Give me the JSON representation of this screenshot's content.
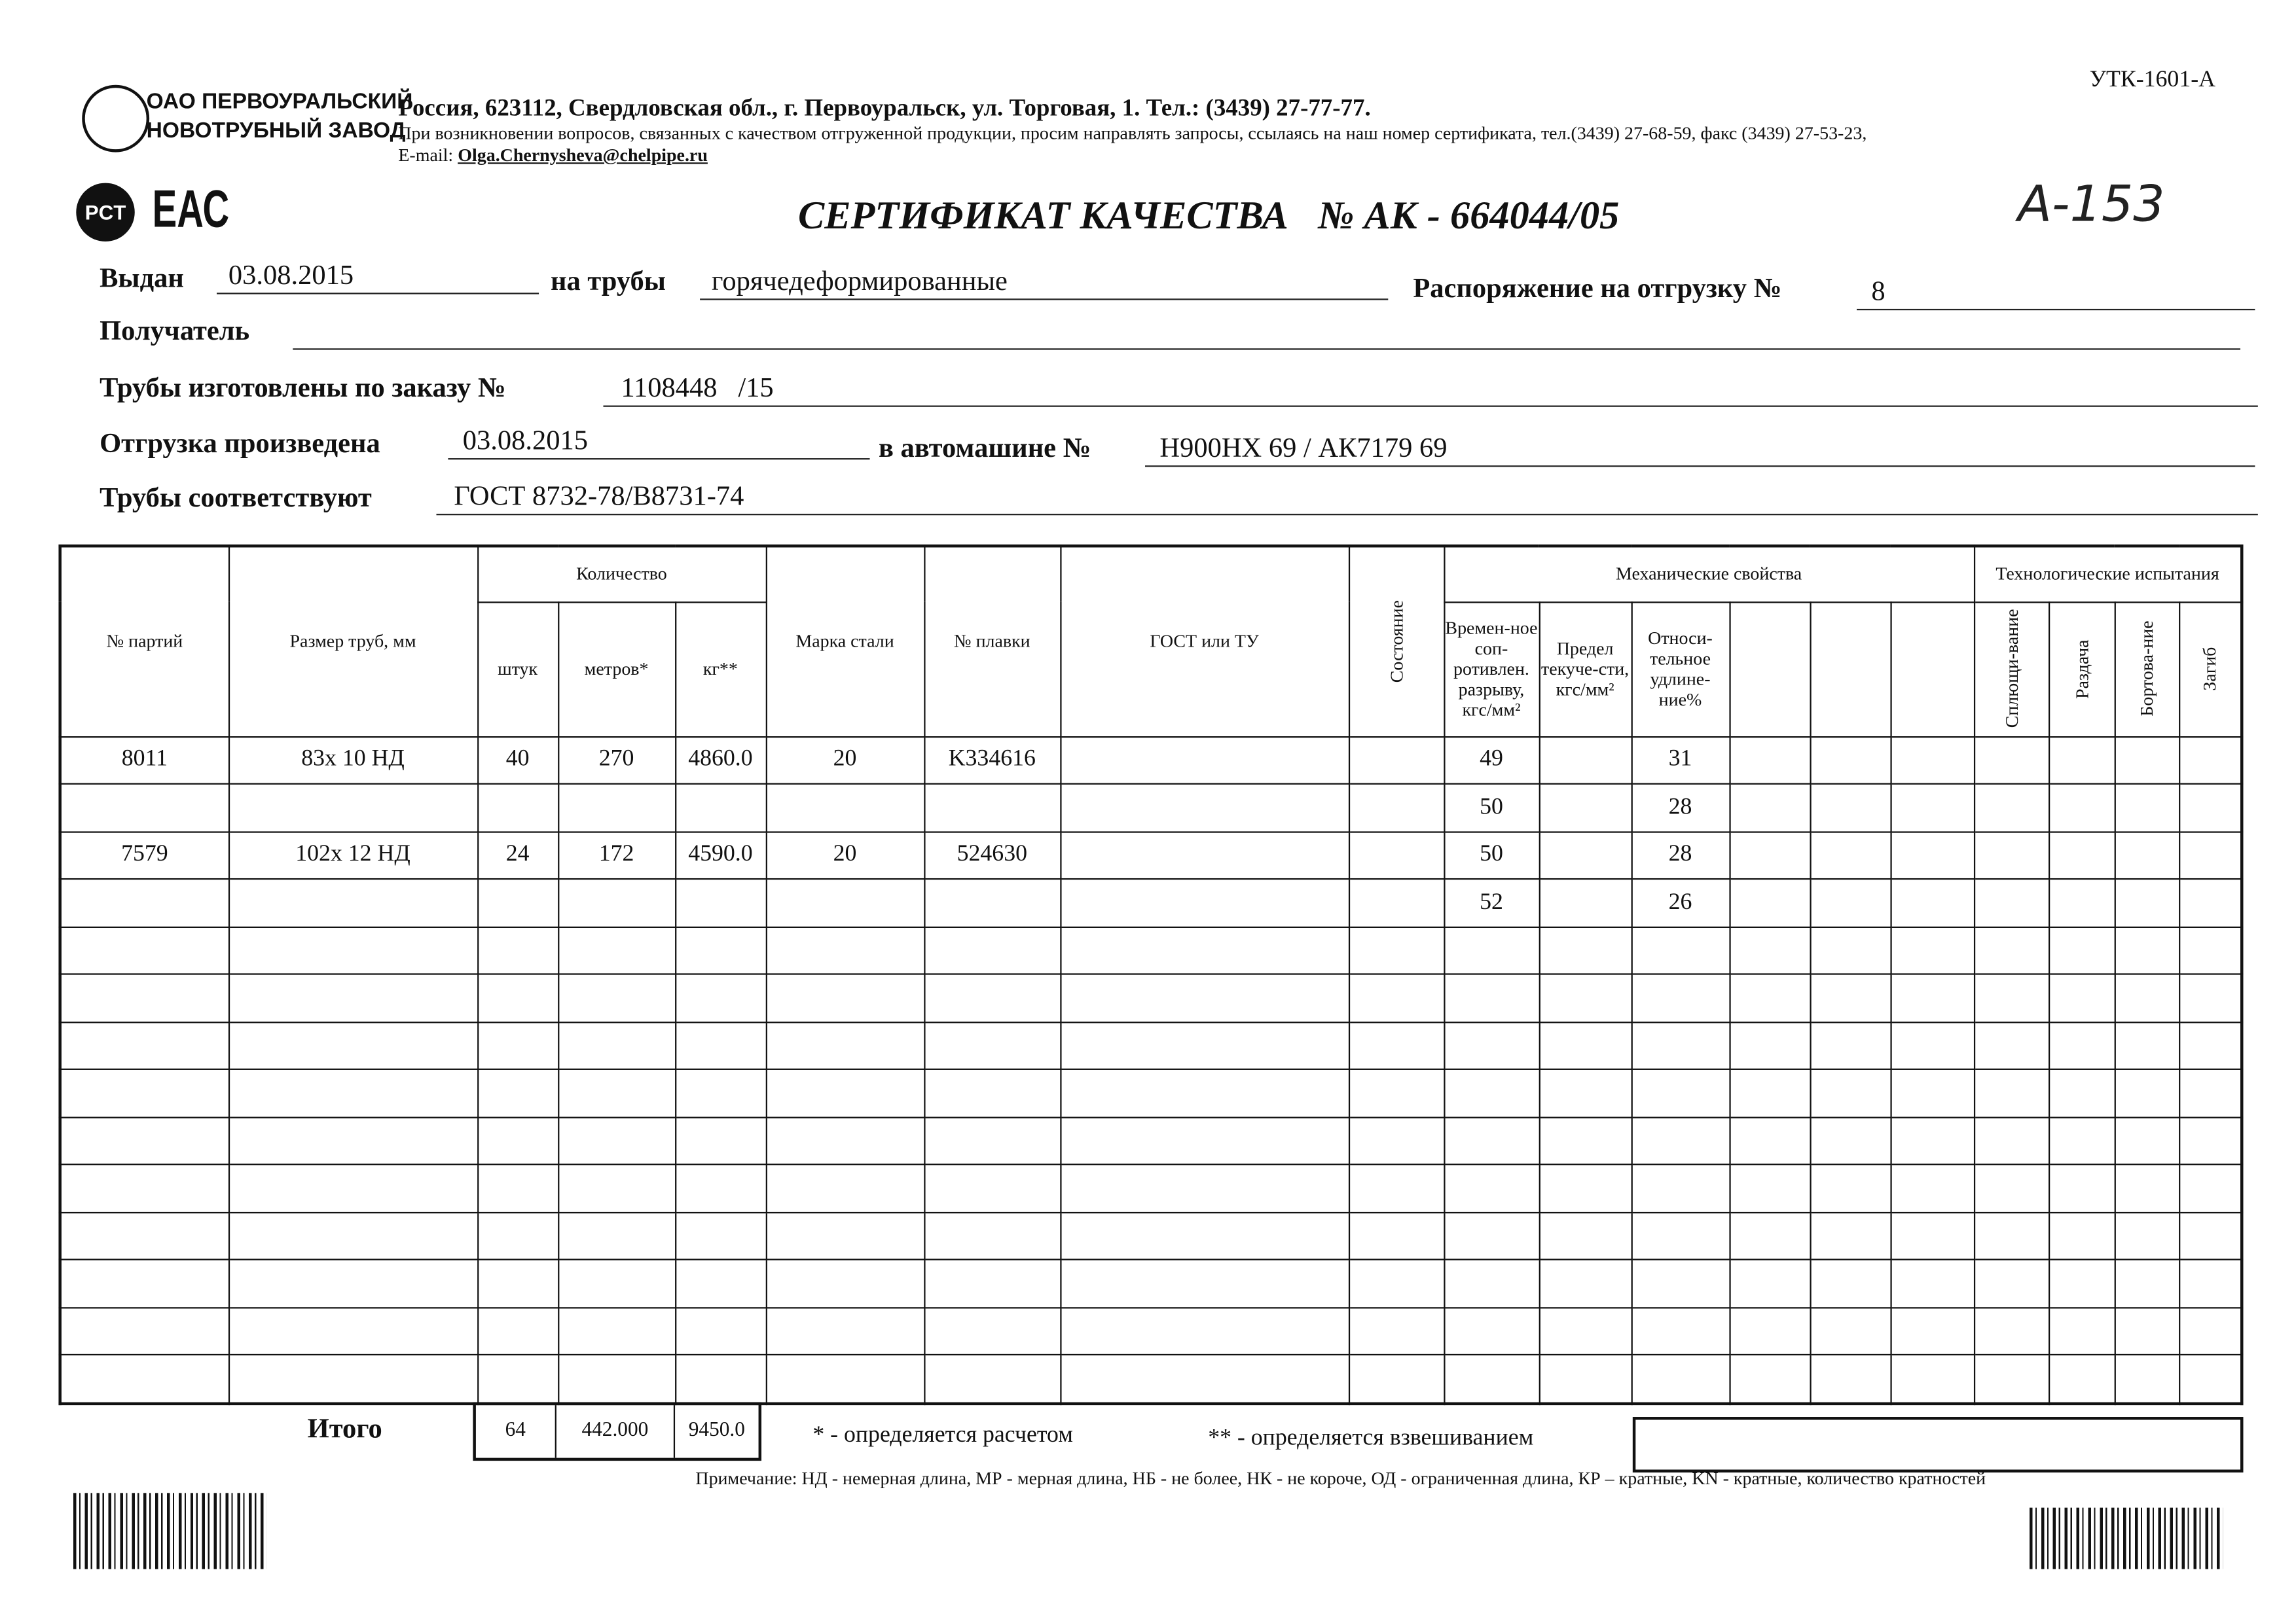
{
  "form_code": "УТК-1601-А",
  "company": {
    "logo_line1": "ОАО ПЕРВОУРАЛЬСКИЙ",
    "logo_line2": "НОВОТРУБНЫЙ ЗАВОД",
    "address": "Россия, 623112, Свердловская обл., г. Первоуральск, ул. Торговая, 1. Тел.: (3439) 27-77-77.",
    "notice": "При возникновении вопросов, связанных с качеством отгруженной продукции, просим направлять запросы, ссылаясь на наш номер сертификата, тел.(3439) 27-68-59, факс (3439) 27-53-23,",
    "email_label": "E-mail:",
    "email": "Olga.Chernysheva@chelpipe.ru"
  },
  "marks": {
    "pct": "PCT",
    "eac": "ЕАС",
    "handwritten": "А-153"
  },
  "title": "СЕРТИФИКАТ КАЧЕСТВА",
  "number_label": "№ АК -",
  "number": "664044/05",
  "fields": {
    "issued_label": "Выдан",
    "issued": "03.08.2015",
    "pipes_label": "на трубы",
    "pipes": "горячедеформированные",
    "order_ship_label": "Распоряжение на отгрузку №",
    "order_ship": "8",
    "recipient_label": "Получатель",
    "recipient": "",
    "order_label": "Трубы изготовлены по заказу №",
    "order": "1108448   /15",
    "shipment_label": "Отгрузка произведена",
    "shipment": "03.08.2015",
    "truck_label": "в автомашине №",
    "truck": "Н900НХ 69 / АК7179 69",
    "standard_label": "Трубы соответствуют",
    "standard": "ГОСТ 8732-78/В8731-74"
  },
  "headers": {
    "batch": "№ партий",
    "size": "Размер труб, мм",
    "qty": "Количество",
    "pcs": "штук",
    "meters": "метров*",
    "kg": "кг**",
    "steel": "Марка стали",
    "heat": "№ плавки",
    "gost": "ГОСТ или ТУ",
    "state": "Состояние",
    "mech": "Механические свойства",
    "tensile": "Времен-ное соп-ротивлен. разрыву, кгс/мм²",
    "yield": "Предел текуче-сти, кгс/мм²",
    "elong": "Относи-тельное удлине-ние%",
    "tech": "Технологические испытания",
    "flat": "Сплющи-вание",
    "expand": "Раздача",
    "flange": "Бортова-ние",
    "bend": "Загиб"
  },
  "rows": [
    {
      "batch": "8011",
      "size": "83x 10 НД",
      "pcs": "40",
      "meters": "270",
      "kg": "4860.0",
      "steel": "20",
      "heat": "K334616",
      "tensile": "49",
      "elong": "31"
    },
    {
      "tensile": "50",
      "elong": "28"
    },
    {
      "batch": "7579",
      "size": "102x 12 НД",
      "pcs": "24",
      "meters": "172",
      "kg": "4590.0",
      "steel": "20",
      "heat": "524630",
      "tensile": "50",
      "elong": "28"
    },
    {
      "tensile": "52",
      "elong": "26"
    },
    {},
    {},
    {},
    {},
    {},
    {},
    {},
    {},
    {},
    {}
  ],
  "totals": {
    "label": "Итого",
    "pcs": "64",
    "meters": "442.000",
    "kg": "9450.0"
  },
  "footnotes": {
    "calc": "* - определяется расчетом",
    "weigh": "** - определяется взвешиванием",
    "note": "Примечание: НД - немерная длина, МР - мерная длина, НБ - не более, НК - не короче, ОД - ограниченная длина, КР – кратные, KN - кратные, количество кратностей"
  }
}
